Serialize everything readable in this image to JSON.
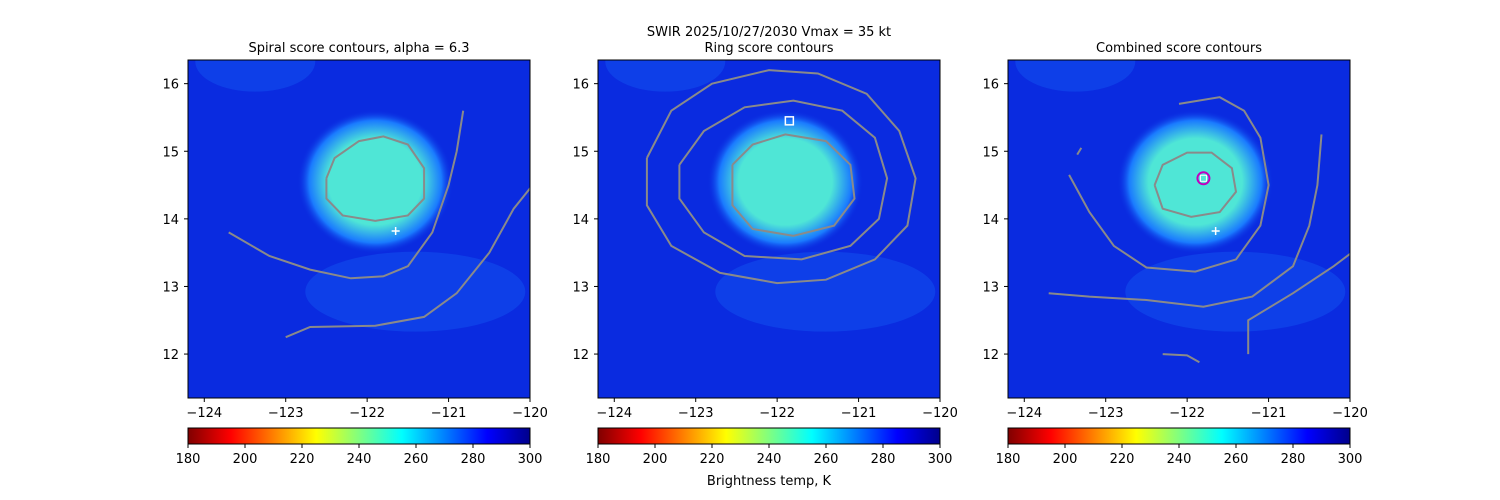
{
  "suptitle": "SWIR  2025/10/27/2030    Vmax = 35 kt",
  "colorbar_label": "Brightness temp, K",
  "colormap": [
    "#800000",
    "#ff0000",
    "#ff8000",
    "#ffff00",
    "#80ff80",
    "#00ffff",
    "#0080ff",
    "#0000ff",
    "#00008b"
  ],
  "colors": {
    "background": "#0a2be0",
    "cloud_mid": "#1a7bff",
    "cloud_core": "#4fe6d6",
    "contour": "#8a8a8a",
    "marker": "#ffffff",
    "circle": "#c000c0"
  },
  "chart_data": [
    {
      "type": "heatmap",
      "title": "Spiral score contours, alpha =  6.3",
      "xlim": [
        -124.2,
        -120.0
      ],
      "ylim": [
        11.35,
        16.35
      ],
      "xticks": [
        "-124",
        "-123",
        "-122",
        "-121",
        "-120"
      ],
      "yticks": [
        "12",
        "13",
        "14",
        "15",
        "16"
      ],
      "colorbar": {
        "range": [
          180,
          300
        ],
        "ticks": [
          "180",
          "200",
          "220",
          "240",
          "260",
          "280",
          "300"
        ]
      },
      "cloud_center": [
        -121.9,
        14.55
      ],
      "cross_marker": [
        -121.65,
        13.82
      ],
      "contours": [
        [
          [
            -122.5,
            14.6
          ],
          [
            -122.4,
            14.9
          ],
          [
            -122.1,
            15.15
          ],
          [
            -121.8,
            15.22
          ],
          [
            -121.5,
            15.1
          ],
          [
            -121.3,
            14.75
          ],
          [
            -121.3,
            14.3
          ],
          [
            -121.5,
            14.05
          ],
          [
            -121.9,
            13.97
          ],
          [
            -122.3,
            14.05
          ],
          [
            -122.5,
            14.3
          ],
          [
            -122.5,
            14.6
          ]
        ],
        [
          [
            -123.7,
            13.8
          ],
          [
            -123.2,
            13.45
          ],
          [
            -122.7,
            13.25
          ],
          [
            -122.2,
            13.12
          ],
          [
            -121.8,
            13.15
          ],
          [
            -121.5,
            13.3
          ],
          [
            -121.2,
            13.8
          ],
          [
            -121.0,
            14.5
          ],
          [
            -120.9,
            15.0
          ],
          [
            -120.82,
            15.6
          ]
        ],
        [
          [
            -123.0,
            12.25
          ],
          [
            -122.7,
            12.4
          ],
          [
            -121.9,
            12.42
          ],
          [
            -121.3,
            12.55
          ],
          [
            -120.9,
            12.9
          ],
          [
            -120.5,
            13.5
          ],
          [
            -120.2,
            14.15
          ],
          [
            -119.98,
            14.48
          ]
        ]
      ]
    },
    {
      "type": "heatmap",
      "title": "Ring score contours",
      "xlim": [
        -124.2,
        -120.0
      ],
      "ylim": [
        11.35,
        16.35
      ],
      "xticks": [
        "-124",
        "-123",
        "-122",
        "-121",
        "-120"
      ],
      "yticks": [
        "12",
        "13",
        "14",
        "15",
        "16"
      ],
      "colorbar": {
        "range": [
          180,
          300
        ],
        "ticks": [
          "180",
          "200",
          "220",
          "240",
          "260",
          "280",
          "300"
        ]
      },
      "cloud_center": [
        -121.9,
        14.55
      ],
      "square_marker": [
        -121.85,
        15.45
      ],
      "contours": [
        [
          [
            -122.55,
            14.8
          ],
          [
            -122.3,
            15.1
          ],
          [
            -121.9,
            15.25
          ],
          [
            -121.4,
            15.15
          ],
          [
            -121.1,
            14.8
          ],
          [
            -121.05,
            14.3
          ],
          [
            -121.3,
            13.9
          ],
          [
            -121.8,
            13.75
          ],
          [
            -122.3,
            13.85
          ],
          [
            -122.55,
            14.2
          ],
          [
            -122.55,
            14.8
          ]
        ],
        [
          [
            -123.6,
            14.9
          ],
          [
            -123.3,
            15.6
          ],
          [
            -122.8,
            16.0
          ],
          [
            -122.1,
            16.2
          ],
          [
            -121.5,
            16.15
          ],
          [
            -120.9,
            15.85
          ],
          [
            -120.5,
            15.3
          ],
          [
            -120.3,
            14.6
          ],
          [
            -120.4,
            13.9
          ],
          [
            -120.8,
            13.4
          ],
          [
            -121.4,
            13.1
          ],
          [
            -122.0,
            13.05
          ],
          [
            -122.7,
            13.2
          ],
          [
            -123.3,
            13.6
          ],
          [
            -123.6,
            14.2
          ],
          [
            -123.6,
            14.9
          ]
        ],
        [
          [
            -123.2,
            14.8
          ],
          [
            -122.9,
            15.3
          ],
          [
            -122.4,
            15.65
          ],
          [
            -121.8,
            15.75
          ],
          [
            -121.2,
            15.6
          ],
          [
            -120.8,
            15.2
          ],
          [
            -120.65,
            14.6
          ],
          [
            -120.75,
            14.0
          ],
          [
            -121.1,
            13.6
          ],
          [
            -121.7,
            13.4
          ],
          [
            -122.4,
            13.45
          ],
          [
            -122.9,
            13.8
          ],
          [
            -123.2,
            14.3
          ],
          [
            -123.2,
            14.8
          ]
        ]
      ]
    },
    {
      "type": "heatmap",
      "title": "Combined score contours",
      "xlim": [
        -124.2,
        -120.0
      ],
      "ylim": [
        11.35,
        16.35
      ],
      "xticks": [
        "-124",
        "-123",
        "-122",
        "-121",
        "-120"
      ],
      "yticks": [
        "12",
        "13",
        "14",
        "15",
        "16"
      ],
      "colorbar": {
        "range": [
          180,
          300
        ],
        "ticks": [
          "180",
          "200",
          "220",
          "240",
          "260",
          "280",
          "300"
        ]
      },
      "cloud_center": [
        -121.9,
        14.55
      ],
      "cross_marker": [
        -121.65,
        13.82
      ],
      "circle_marker": [
        -121.8,
        14.6
      ],
      "contours": [
        [
          [
            -122.4,
            14.5
          ],
          [
            -122.3,
            14.8
          ],
          [
            -122.0,
            14.98
          ],
          [
            -121.7,
            14.98
          ],
          [
            -121.45,
            14.75
          ],
          [
            -121.4,
            14.4
          ],
          [
            -121.6,
            14.1
          ],
          [
            -121.95,
            14.03
          ],
          [
            -122.3,
            14.15
          ],
          [
            -122.4,
            14.5
          ]
        ],
        [
          [
            -122.1,
            15.7
          ],
          [
            -121.6,
            15.8
          ],
          [
            -121.3,
            15.6
          ],
          [
            -121.1,
            15.2
          ],
          [
            -121.0,
            14.5
          ],
          [
            -121.1,
            13.9
          ],
          [
            -121.4,
            13.4
          ],
          [
            -121.9,
            13.22
          ],
          [
            -122.5,
            13.28
          ],
          [
            -122.9,
            13.6
          ],
          [
            -123.2,
            14.1
          ],
          [
            -123.45,
            14.65
          ]
        ],
        [
          [
            -123.7,
            12.9
          ],
          [
            -123.2,
            12.85
          ],
          [
            -122.5,
            12.8
          ],
          [
            -121.8,
            12.7
          ],
          [
            -121.2,
            12.85
          ],
          [
            -120.7,
            13.3
          ],
          [
            -120.5,
            13.9
          ],
          [
            -120.4,
            14.5
          ],
          [
            -120.35,
            15.25
          ]
        ],
        [
          [
            -122.3,
            12.0
          ],
          [
            -122.0,
            11.98
          ],
          [
            -121.85,
            11.88
          ]
        ],
        [
          [
            -121.25,
            12.0
          ],
          [
            -121.25,
            12.5
          ],
          [
            -120.7,
            12.9
          ],
          [
            -120.2,
            13.3
          ],
          [
            -119.98,
            13.5
          ]
        ],
        [
          [
            -123.35,
            14.95
          ],
          [
            -123.3,
            15.05
          ]
        ]
      ]
    }
  ]
}
